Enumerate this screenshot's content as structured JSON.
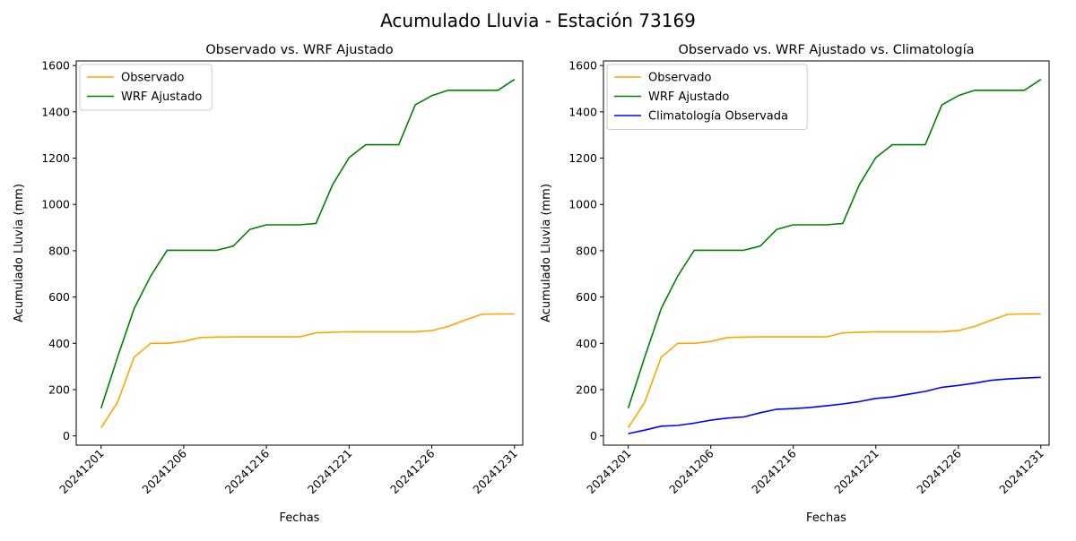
{
  "figure_title": "Acumulado Lluvia - Estación 73169",
  "colors": {
    "Observado": "#ffa500",
    "WRF Ajustado": "#008000",
    "Climatología Observada": "#0000ff"
  },
  "chart_data": [
    {
      "type": "line",
      "title": "Observado vs. WRF Ajustado",
      "xlabel": "Fechas",
      "ylabel": "Acumulado Lluvia (mm)",
      "x_tick_labels": [
        "20241201",
        "20241206",
        "20241216",
        "20241221",
        "20241226",
        "20241231"
      ],
      "x_tick_days": [
        1,
        6,
        11,
        16,
        21,
        26
      ],
      "y_ticks": [
        0,
        200,
        400,
        600,
        800,
        1000,
        1200,
        1400,
        1600
      ],
      "xlim": [
        -0.5,
        26.5
      ],
      "ylim": [
        -40,
        1620
      ],
      "legend": "top-left",
      "grid": false,
      "x_day_index": [
        1,
        2,
        3,
        4,
        5,
        6,
        7,
        8,
        9,
        10,
        11,
        12,
        13,
        14,
        15,
        16,
        17,
        18,
        19,
        20,
        21,
        22,
        23,
        24,
        25,
        26
      ],
      "series": [
        {
          "name": "Observado",
          "values": [
            35,
            145,
            340,
            400,
            400,
            408,
            425,
            427,
            428,
            428,
            428,
            428,
            428,
            445,
            448,
            450,
            450,
            450,
            450,
            450,
            455,
            473,
            500,
            525,
            527,
            527
          ]
        },
        {
          "name": "WRF Ajustado",
          "values": [
            120,
            340,
            550,
            690,
            802,
            802,
            802,
            802,
            820,
            892,
            912,
            912,
            912,
            918,
            1085,
            1202,
            1258,
            1258,
            1258,
            1430,
            1470,
            1493,
            1493,
            1493,
            1493,
            1540
          ]
        }
      ]
    },
    {
      "type": "line",
      "title": "Observado vs. WRF Ajustado vs. Climatología",
      "xlabel": "Fechas",
      "ylabel": "Acumulado Lluvia (mm)",
      "x_tick_labels": [
        "20241201",
        "20241206",
        "20241216",
        "20241221",
        "20241226",
        "20241231"
      ],
      "x_tick_days": [
        1,
        6,
        11,
        16,
        21,
        26
      ],
      "y_ticks": [
        0,
        200,
        400,
        600,
        800,
        1000,
        1200,
        1400,
        1600
      ],
      "xlim": [
        -0.5,
        26.5
      ],
      "ylim": [
        -40,
        1620
      ],
      "legend": "top-left",
      "grid": false,
      "x_day_index": [
        1,
        2,
        3,
        4,
        5,
        6,
        7,
        8,
        9,
        10,
        11,
        12,
        13,
        14,
        15,
        16,
        17,
        18,
        19,
        20,
        21,
        22,
        23,
        24,
        25,
        26
      ],
      "series": [
        {
          "name": "Observado",
          "values": [
            35,
            145,
            340,
            400,
            400,
            408,
            425,
            427,
            428,
            428,
            428,
            428,
            428,
            445,
            448,
            450,
            450,
            450,
            450,
            450,
            455,
            473,
            500,
            525,
            527,
            527
          ]
        },
        {
          "name": "WRF Ajustado",
          "values": [
            120,
            340,
            550,
            690,
            802,
            802,
            802,
            802,
            820,
            892,
            912,
            912,
            912,
            918,
            1085,
            1202,
            1258,
            1258,
            1258,
            1430,
            1470,
            1493,
            1493,
            1493,
            1493,
            1540
          ]
        },
        {
          "name": "Climatología Observada",
          "values": [
            10,
            25,
            42,
            45,
            55,
            68,
            77,
            82,
            100,
            115,
            118,
            123,
            130,
            138,
            148,
            162,
            168,
            180,
            192,
            210,
            218,
            228,
            240,
            246,
            250,
            253
          ]
        }
      ]
    }
  ]
}
